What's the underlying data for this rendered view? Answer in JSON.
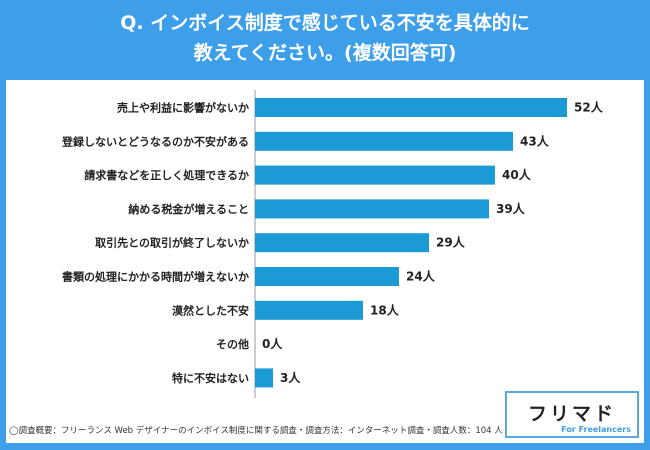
{
  "chart_data": {
    "type": "bar",
    "orientation": "horizontal",
    "title": "Q. インボイス制度で感じている不安を具体的に\n教えてください。(複数回答可)",
    "categories": [
      "売上や利益に影響がないか",
      "登録しないとどうなるのか不安がある",
      "請求書などを正しく処理できるか",
      "納める税金が増えること",
      "取引先との取引が終了しないか",
      "書類の処理にかかる時間が増えないか",
      "漠然とした不安",
      "その他",
      "特に不安はない"
    ],
    "values": [
      52,
      43,
      40,
      39,
      29,
      24,
      18,
      0,
      3
    ],
    "unit": "人",
    "value_labels": [
      "52人",
      "43人",
      "40人",
      "39人",
      "29人",
      "24人",
      "18人",
      "0人",
      "3人"
    ],
    "xlim": [
      0,
      52
    ],
    "bar_color": "#1c9ad6"
  },
  "footnote": "◯調査概要：フリーランス Web デザイナーのインボイス制度に関する調査・調査方法：インターネット調査・調査人数：104 人",
  "logo": {
    "text": "フリマド",
    "subtext": "For Freelancers"
  },
  "colors": {
    "background": "#3d9ee9",
    "panel": "#ffffff",
    "axis": "#9a9a9a"
  }
}
